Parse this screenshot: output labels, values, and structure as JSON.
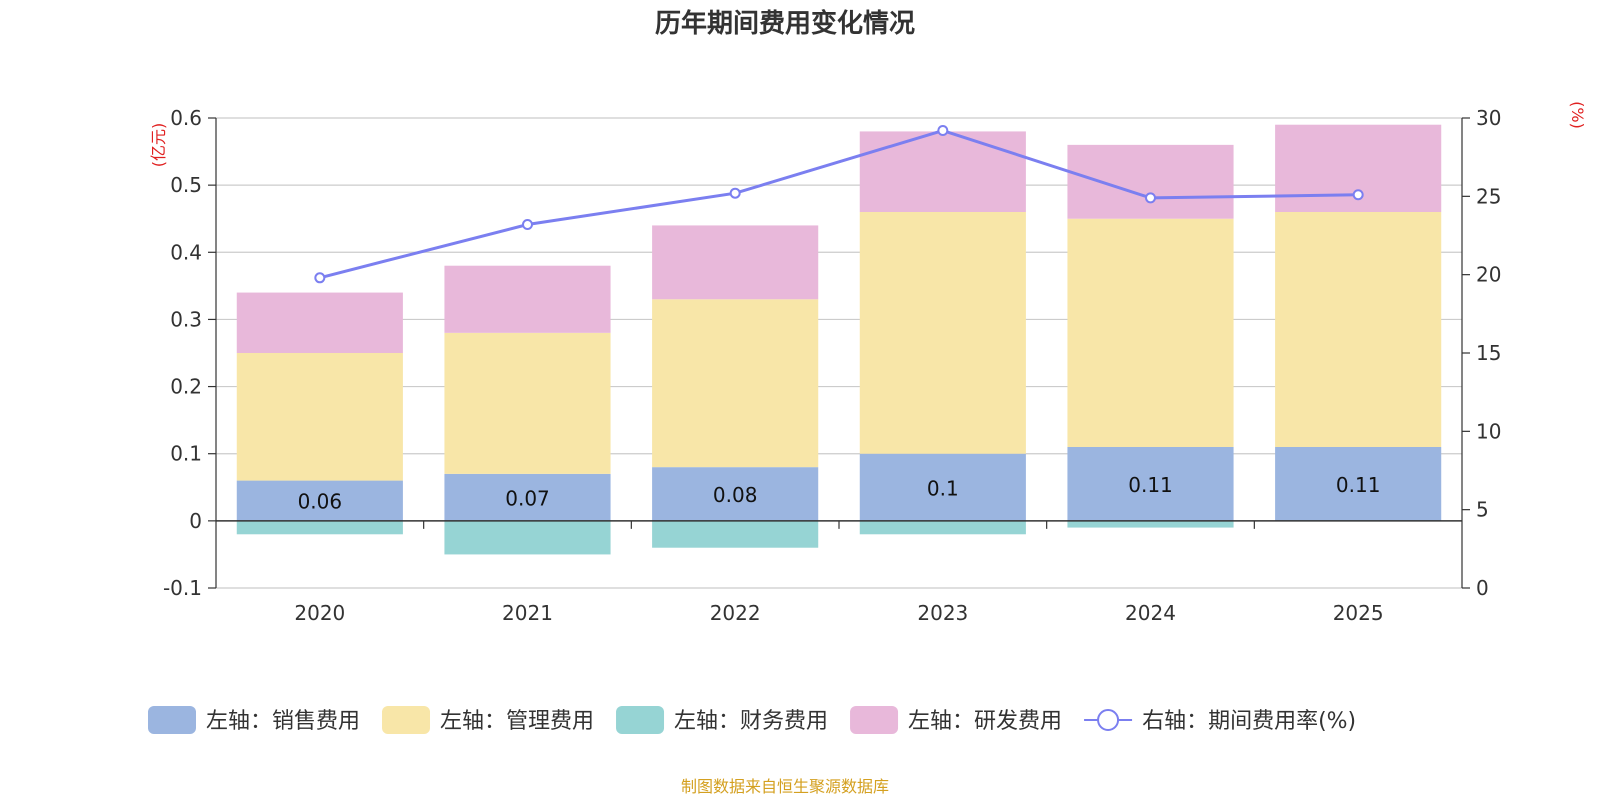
{
  "chart_data": {
    "type": "bar",
    "stacked": true,
    "title": "历年期间费用变化情况",
    "categories": [
      "2020",
      "2021",
      "2022",
      "2023",
      "2024",
      "2025"
    ],
    "series": [
      {
        "name": "左轴：销售费用",
        "axis": "left",
        "type": "bar",
        "color": "#9bb5e0",
        "values": [
          0.06,
          0.07,
          0.08,
          0.1,
          0.11,
          0.11
        ],
        "labels": [
          "0.06",
          "0.07",
          "0.08",
          "0.1",
          "0.11",
          "0.11"
        ]
      },
      {
        "name": "左轴：管理费用",
        "axis": "left",
        "type": "bar",
        "color": "#f8e6a8",
        "values": [
          0.19,
          0.21,
          0.25,
          0.36,
          0.34,
          0.35
        ]
      },
      {
        "name": "左轴：财务费用",
        "axis": "left",
        "type": "bar",
        "color": "#96d4d4",
        "values": [
          -0.02,
          -0.05,
          -0.04,
          -0.02,
          -0.01,
          0
        ]
      },
      {
        "name": "左轴：研发费用",
        "axis": "left",
        "type": "bar",
        "color": "#e8b8da",
        "values": [
          0.09,
          0.1,
          0.11,
          0.12,
          0.11,
          0.13
        ]
      },
      {
        "name": "右轴：期间费用率(%)",
        "axis": "right",
        "type": "line",
        "color": "#7b7ff0",
        "values": [
          19.8,
          23.2,
          25.2,
          29.2,
          24.9,
          25.1
        ]
      }
    ],
    "left_axis": {
      "unit": "(亿元)",
      "min": -0.1,
      "max": 0.6,
      "ticks": [
        -0.1,
        0,
        0.1,
        0.2,
        0.3,
        0.4,
        0.5,
        0.6
      ],
      "tick_labels": [
        "-0.1",
        "0",
        "0.1",
        "0.2",
        "0.3",
        "0.4",
        "0.5",
        "0.6"
      ]
    },
    "right_axis": {
      "unit": "(%)",
      "min": 0,
      "max": 30,
      "ticks": [
        0,
        5,
        10,
        15,
        20,
        25,
        30
      ],
      "tick_labels": [
        "0",
        "5",
        "10",
        "15",
        "20",
        "25",
        "30"
      ]
    },
    "legend_position": "bottom",
    "grid": true
  },
  "source_note": "制图数据来自恒生聚源数据库",
  "colors": {
    "title": "#333333",
    "axis_unit": "#e02020",
    "source": "#d4a020",
    "grid": "#cccccc",
    "axis_text": "#333333"
  }
}
